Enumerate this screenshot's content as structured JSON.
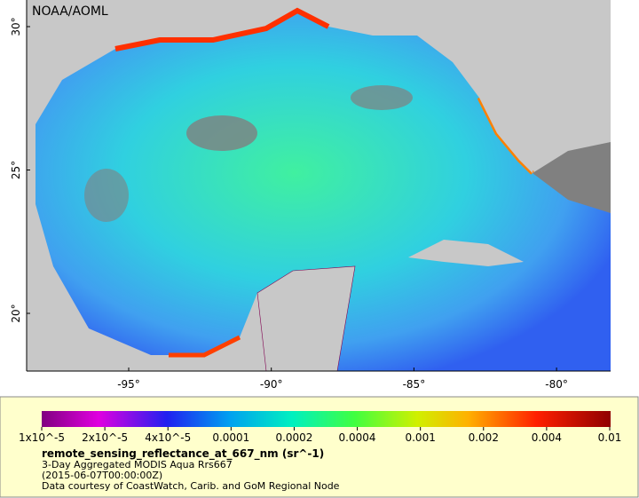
{
  "map": {
    "credit": "NOAA/AOML",
    "lat_labels": [
      "30°",
      "25°",
      "20°"
    ],
    "lon_labels": [
      "-95°",
      "-90°",
      "-85°",
      "-80°"
    ]
  },
  "legend": {
    "ticks": [
      "1x10^-5",
      "2x10^-5",
      "4x10^-5",
      "0.0001",
      "0.0002",
      "0.0004",
      "0.001",
      "0.002",
      "0.004",
      "0.01"
    ],
    "title": "remote_sensing_reflectance_at_667_nm (sr^-1)",
    "lines": [
      "3-Day Aggregated MODIS Aqua Rrs667",
      "(2015-06-07T00:00:00Z)",
      "Data courtesy of CoastWatch, Carib. and GoM Regional Node"
    ]
  }
}
